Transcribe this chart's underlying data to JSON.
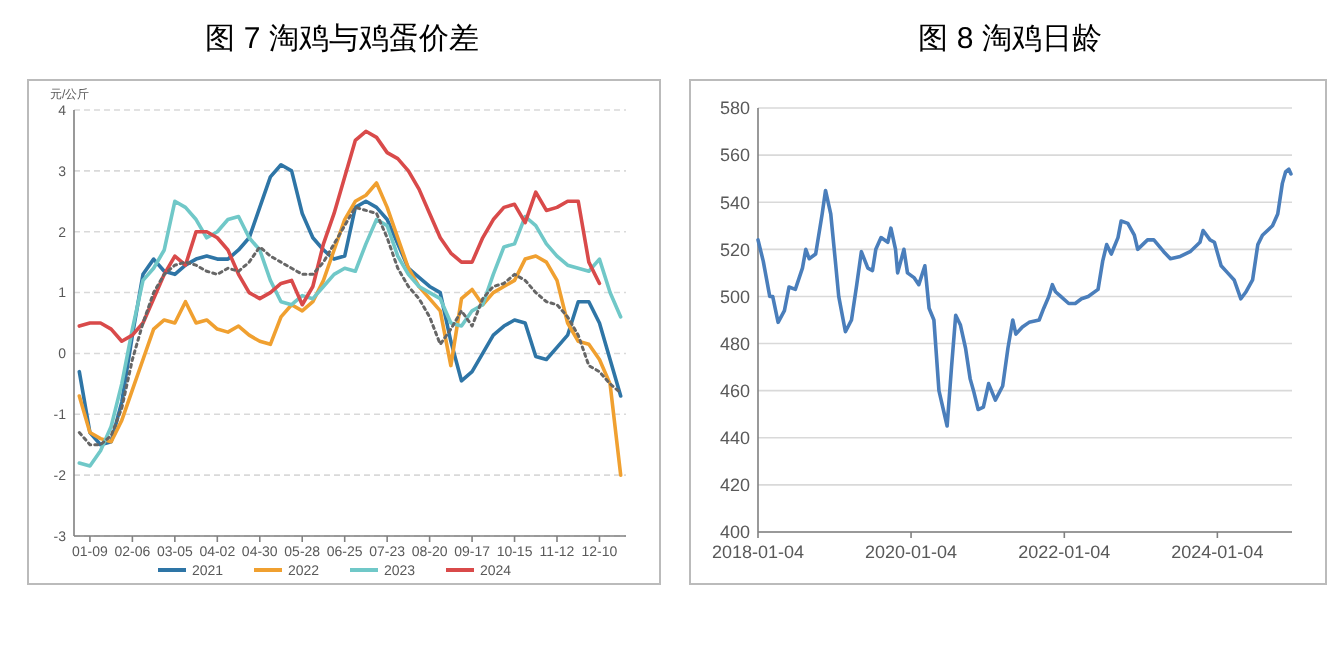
{
  "chart_data": [
    {
      "type": "line",
      "title": "图 7 淘鸡与鸡蛋价差",
      "ylabel": "元/公斤",
      "categories": [
        null,
        "01-09",
        null,
        null,
        null,
        "02-06",
        null,
        null,
        null,
        "03-05",
        null,
        null,
        null,
        "04-02",
        null,
        null,
        null,
        "04-30",
        null,
        null,
        null,
        "05-28",
        null,
        null,
        null,
        "06-25",
        null,
        null,
        null,
        "07-23",
        null,
        null,
        null,
        "08-20",
        null,
        null,
        null,
        "09-17",
        null,
        null,
        null,
        "10-15",
        null,
        null,
        null,
        "11-12",
        null,
        null,
        null,
        "12-10",
        null,
        null
      ],
      "series": [
        {
          "name": "2021",
          "color": "#2e75a6",
          "values": [
            -0.3,
            -1.3,
            -1.5,
            -1.45,
            -0.8,
            0.3,
            1.3,
            1.55,
            1.35,
            1.3,
            1.45,
            1.55,
            1.6,
            1.55,
            1.55,
            1.7,
            1.9,
            2.4,
            2.9,
            3.1,
            3.0,
            2.3,
            1.9,
            1.7,
            1.55,
            1.6,
            2.4,
            2.5,
            2.4,
            2.2,
            1.8,
            1.4,
            1.25,
            1.1,
            1.0,
            0.2,
            -0.45,
            -0.3,
            0.0,
            0.3,
            0.45,
            0.55,
            0.5,
            -0.05,
            -0.1,
            0.1,
            0.3,
            0.85,
            0.85,
            0.5,
            -0.1,
            -0.7
          ]
        },
        {
          "name": "2022",
          "color": "#f0a030",
          "values": [
            -0.7,
            -1.3,
            -1.4,
            -1.45,
            -1.1,
            -0.6,
            -0.1,
            0.4,
            0.55,
            0.5,
            0.85,
            0.5,
            0.55,
            0.4,
            0.35,
            0.45,
            0.3,
            0.2,
            0.15,
            0.6,
            0.8,
            0.7,
            0.85,
            1.2,
            1.7,
            2.2,
            2.5,
            2.6,
            2.8,
            2.4,
            1.9,
            1.4,
            1.1,
            0.9,
            0.7,
            -0.2,
            0.9,
            1.05,
            0.8,
            1.0,
            1.1,
            1.2,
            1.55,
            1.6,
            1.5,
            1.2,
            0.5,
            0.2,
            0.15,
            -0.1,
            -0.5,
            -2.0
          ]
        },
        {
          "name": "2023",
          "color": "#70c8c8",
          "values": [
            -1.8,
            -1.85,
            -1.6,
            -1.2,
            -0.5,
            0.4,
            1.2,
            1.4,
            1.7,
            2.5,
            2.4,
            2.2,
            1.9,
            2.0,
            2.2,
            2.25,
            1.9,
            1.7,
            1.2,
            0.85,
            0.8,
            0.95,
            0.9,
            1.1,
            1.3,
            1.4,
            1.35,
            1.8,
            2.2,
            2.1,
            1.6,
            1.3,
            1.1,
            1.0,
            0.9,
            0.5,
            0.45,
            0.7,
            0.8,
            1.3,
            1.75,
            1.8,
            2.25,
            2.1,
            1.8,
            1.6,
            1.45,
            1.4,
            1.35,
            1.55,
            1.0,
            0.6
          ]
        },
        {
          "name": "2024",
          "color": "#d94a4a",
          "values": [
            0.45,
            0.5,
            0.5,
            0.4,
            0.2,
            0.3,
            0.5,
            0.9,
            1.3,
            1.6,
            1.45,
            2.0,
            2.0,
            1.9,
            1.7,
            1.3,
            1.0,
            0.9,
            1.0,
            1.15,
            1.2,
            0.8,
            1.1,
            1.8,
            2.3,
            2.9,
            3.5,
            3.65,
            3.55,
            3.3,
            3.2,
            3.0,
            2.7,
            2.3,
            1.9,
            1.65,
            1.5,
            1.5,
            1.9,
            2.2,
            2.4,
            2.45,
            2.15,
            2.65,
            2.35,
            2.4,
            2.5,
            2.5,
            1.5,
            1.15,
            null,
            null
          ]
        },
        {
          "color": "#666666",
          "line_style": "dotted",
          "values": [
            -1.3,
            -1.5,
            -1.5,
            -1.35,
            -0.9,
            -0.1,
            0.5,
            1.0,
            1.3,
            1.45,
            1.5,
            1.45,
            1.35,
            1.3,
            1.4,
            1.35,
            1.5,
            1.75,
            1.6,
            1.5,
            1.4,
            1.3,
            1.3,
            1.5,
            1.8,
            2.1,
            2.4,
            2.35,
            2.3,
            1.9,
            1.4,
            1.1,
            0.9,
            0.6,
            0.15,
            0.4,
            0.7,
            0.45,
            0.9,
            1.1,
            1.15,
            1.3,
            1.2,
            1.0,
            0.85,
            0.8,
            0.6,
            0.3,
            -0.2,
            -0.3,
            -0.5,
            -0.65
          ]
        }
      ],
      "ylim": [
        -3,
        4
      ],
      "yticks": [
        -3,
        -2,
        -1,
        0,
        1,
        2,
        3,
        4
      ],
      "grid": "y",
      "legend": "bottom"
    },
    {
      "type": "line",
      "title": "图 8 淘鸡日龄",
      "color": "#4a7ebb",
      "x": [
        "2018-01-04",
        "2018-01-29",
        "2018-03-01",
        "2018-03-15",
        "2018-04-10",
        "2018-05-10",
        "2018-06-01",
        "2018-07-01",
        "2018-08-04",
        "2018-08-20",
        "2018-09-05",
        "2018-10-06",
        "2018-11-06",
        "2018-11-22",
        "2018-12-17",
        "2019-01-08",
        "2019-01-24",
        "2019-02-25",
        "2019-03-26",
        "2019-04-20",
        "2019-05-12",
        "2019-06-12",
        "2019-07-04",
        "2019-07-20",
        "2019-08-14",
        "2019-09-15",
        "2019-09-30",
        "2019-10-22",
        "2019-11-01",
        "2019-12-01",
        "2019-12-18",
        "2020-01-18",
        "2020-02-10",
        "2020-03-10",
        "2020-03-30",
        "2020-04-22",
        "2020-05-16",
        "2020-06-24",
        "2020-07-15",
        "2020-08-04",
        "2020-08-26",
        "2020-09-20",
        "2020-10-12",
        "2020-10-28",
        "2020-11-19",
        "2020-12-14",
        "2021-01-08",
        "2021-02-09",
        "2021-03-16",
        "2021-04-10",
        "2021-05-03",
        "2021-05-18",
        "2021-06-18",
        "2021-07-20",
        "2021-09-06",
        "2021-09-28",
        "2021-10-22",
        "2021-11-08",
        "2021-11-23",
        "2021-12-18",
        "2022-01-25",
        "2022-02-25",
        "2022-03-27",
        "2022-04-28",
        "2022-06-14",
        "2022-07-06",
        "2022-07-25",
        "2022-08-16",
        "2022-09-17",
        "2022-10-02",
        "2022-11-03",
        "2022-12-04",
        "2022-12-20",
        "2023-02-05",
        "2023-03-07",
        "2023-04-23",
        "2023-05-25",
        "2023-07-11",
        "2023-08-27",
        "2023-10-13",
        "2023-10-28",
        "2023-11-30",
        "2023-12-21",
        "2024-01-22",
        "2024-02-22",
        "2024-03-24",
        "2024-04-25",
        "2024-05-20",
        "2024-06-20",
        "2024-07-15",
        "2024-08-06",
        "2024-09-23",
        "2024-10-18",
        "2024-11-09",
        "2024-11-25",
        "2024-12-10",
        "2024-12-20"
      ],
      "values": [
        524,
        515,
        500,
        500,
        489,
        494,
        504,
        503,
        512,
        520,
        516,
        518,
        535,
        545,
        535,
        515,
        500,
        485,
        490,
        505,
        519,
        512,
        511,
        520,
        525,
        523,
        529,
        520,
        510,
        520,
        510,
        508,
        505,
        513,
        495,
        490,
        460,
        445,
        470,
        492,
        488,
        478,
        465,
        460,
        452,
        453,
        463,
        456,
        462,
        478,
        490,
        484,
        487,
        489,
        490,
        495,
        500,
        505,
        502,
        500,
        497,
        497,
        499,
        500,
        503,
        515,
        522,
        518,
        525,
        532,
        531,
        526,
        520,
        524,
        524,
        519,
        516,
        517,
        519,
        523,
        528,
        524,
        523,
        513,
        510,
        507,
        499,
        502,
        507,
        522,
        526,
        530,
        535,
        548,
        553,
        554,
        552
      ],
      "xlim": [
        "2018-01-04",
        "2024-12-25"
      ],
      "xticks": [
        "2018-01-04",
        "2020-01-04",
        "2022-01-04",
        "2024-01-04"
      ],
      "ylim": [
        400,
        580
      ],
      "yticks": [
        400,
        420,
        440,
        460,
        480,
        500,
        520,
        540,
        560,
        580
      ],
      "grid": "y"
    }
  ]
}
